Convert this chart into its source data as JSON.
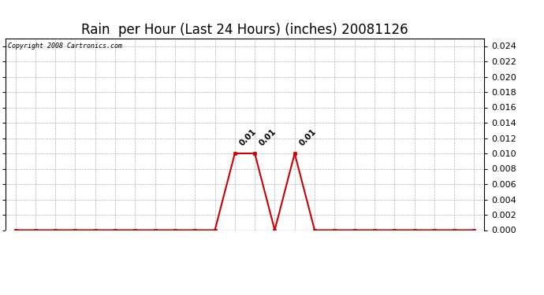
{
  "title": "Rain  per Hour (Last 24 Hours) (inches) 20081126",
  "copyright_text": "Copyright 2008 Cartronics.com",
  "line_color": "#cc0000",
  "marker_color": "#cc0000",
  "grid_color": "#aaaaaa",
  "background_color": "#ffffff",
  "plot_bg_color": "#ffffff",
  "hours": [
    0,
    1,
    2,
    3,
    4,
    5,
    6,
    7,
    8,
    9,
    10,
    11,
    12,
    13,
    14,
    15,
    16,
    17,
    18,
    19,
    20,
    21,
    22,
    23
  ],
  "values": [
    0.0,
    0.0,
    0.0,
    0.0,
    0.0,
    0.0,
    0.0,
    0.0,
    0.0,
    0.0,
    0.0,
    0.01,
    0.01,
    0.0,
    0.01,
    0.0,
    0.0,
    0.0,
    0.0,
    0.0,
    0.0,
    0.0,
    0.0,
    0.0
  ],
  "ylim": [
    0.0,
    0.025
  ],
  "yticks": [
    0.0,
    0.002,
    0.004,
    0.006,
    0.008,
    0.01,
    0.012,
    0.014,
    0.016,
    0.018,
    0.02,
    0.022,
    0.024
  ],
  "annotate_indices": [
    11,
    12,
    14
  ],
  "title_fontsize": 12,
  "tick_fontsize": 7,
  "annotation_fontsize": 7.5,
  "copyright_fontsize": 6,
  "ytick_fontsize": 8
}
